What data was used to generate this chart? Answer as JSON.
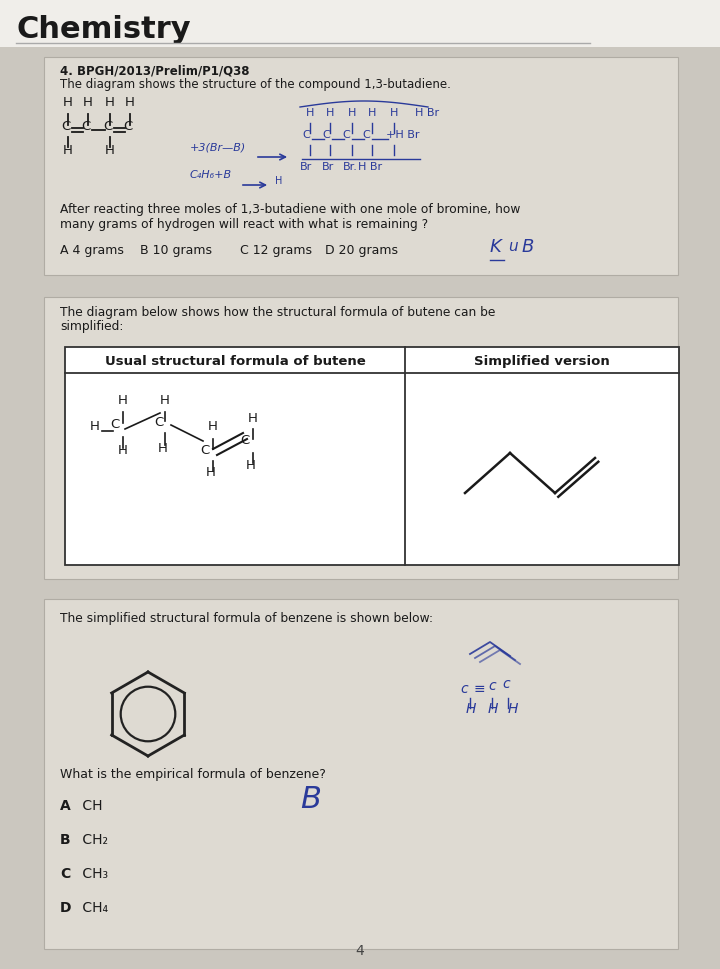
{
  "title": "Chemistry",
  "page_bg": "#d8d4cc",
  "white_area_bg": "#e8e4dc",
  "card_bg": "#ddd9d0",
  "title_bg": "#ffffff",
  "q1_number": "4. BPGH/2013/Prelim/P1/Q38",
  "q1_intro": "The diagram shows the structure of the compound 1,3-butadiene.",
  "q1_text_line1": "After reacting three moles of 1,3-butadiene with one mole of bromine, how",
  "q1_text_line2": "many grams of hydrogen will react with what is remaining ?",
  "q1_opts": [
    "A 4 grams",
    "B 10 grams",
    "C 12 grams",
    "D 20 grams"
  ],
  "butene_intro_line1": "The diagram below shows how the structural formula of butene can be",
  "butene_intro_line2": "simplified:",
  "table_col1": "Usual structural formula of butene",
  "table_col2": "Simplified version",
  "benzene_intro": "The simplified structural formula of benzene is shown below:",
  "benzene_q": "What is the empirical formula of benzene?",
  "q2_opts": [
    [
      "A",
      "CH"
    ],
    [
      "B",
      "CH",
      "2"
    ],
    [
      "C",
      "CH",
      "3"
    ],
    [
      "D",
      "CH",
      "4"
    ]
  ],
  "page_num": "4",
  "hw_color": "#2a3a9a",
  "text_color": "#1a1a1a"
}
